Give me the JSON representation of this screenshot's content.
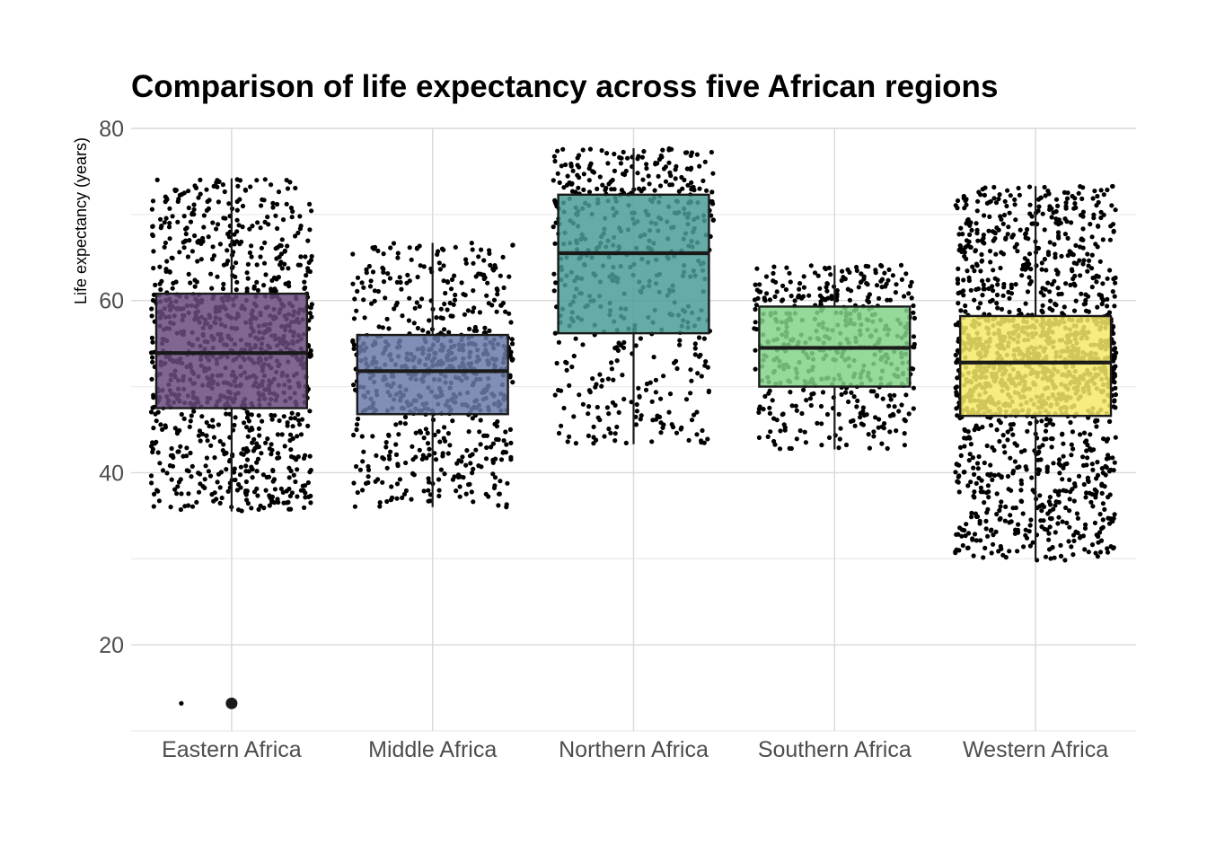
{
  "chart_data": {
    "type": "box",
    "title": "Comparison of life expectancy across five African regions",
    "xlabel": "",
    "ylabel": "Life expectancy (years)",
    "ylim": [
      10,
      80
    ],
    "yticks": [
      20,
      40,
      60,
      80
    ],
    "grid": true,
    "legend": "none",
    "categories": [
      "Eastern Africa",
      "Middle Africa",
      "Northern Africa",
      "Southern Africa",
      "Western Africa"
    ],
    "boxes": [
      {
        "category": "Eastern Africa",
        "q1": 47.5,
        "median": 53.9,
        "q3": 60.8,
        "whisker_low": 35.5,
        "whisker_high": 74.2,
        "outliers": [
          13.2
        ],
        "color": "#6a4c7e",
        "points": 1100
      },
      {
        "category": "Middle Africa",
        "q1": 46.8,
        "median": 51.8,
        "q3": 56.0,
        "whisker_low": 36.0,
        "whisker_high": 66.7,
        "outliers": [],
        "color": "#6b7aa8",
        "points": 700
      },
      {
        "category": "Northern Africa",
        "q1": 56.2,
        "median": 65.5,
        "q3": 72.3,
        "whisker_low": 43.3,
        "whisker_high": 77.7,
        "outliers": [],
        "color": "#4a9e98",
        "points": 550
      },
      {
        "category": "Southern Africa",
        "q1": 50.0,
        "median": 54.5,
        "q3": 59.3,
        "whisker_low": 42.7,
        "whisker_high": 64.1,
        "outliers": [],
        "color": "#82d48a",
        "points": 500
      },
      {
        "category": "Western Africa",
        "q1": 46.6,
        "median": 52.8,
        "q3": 58.2,
        "whisker_low": 29.8,
        "whisker_high": 73.3,
        "outliers": [],
        "color": "#f6e967",
        "points": 1550
      }
    ]
  }
}
